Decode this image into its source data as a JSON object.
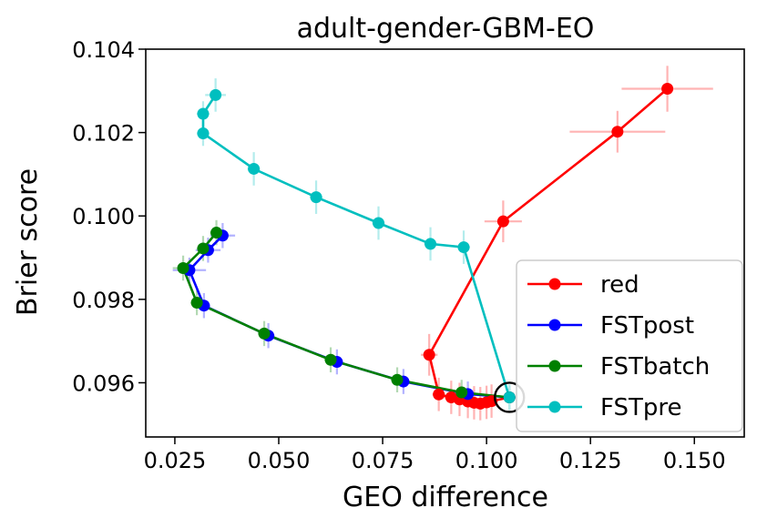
{
  "chart_data": {
    "type": "line",
    "title": "adult-gender-GBM-EO",
    "xlabel": "GEO difference",
    "ylabel": "Brier score",
    "xlim": [
      0.018,
      0.162
    ],
    "ylim": [
      0.0947,
      0.104
    ],
    "xticks": [
      {
        "value": 0.025,
        "label": "0.025"
      },
      {
        "value": 0.05,
        "label": "0.050"
      },
      {
        "value": 0.075,
        "label": "0.075"
      },
      {
        "value": 0.1,
        "label": "0.100"
      },
      {
        "value": 0.125,
        "label": "0.125"
      },
      {
        "value": 0.15,
        "label": "0.150"
      }
    ],
    "yticks": [
      {
        "value": 0.096,
        "label": "0.096"
      },
      {
        "value": 0.098,
        "label": "0.098"
      },
      {
        "value": 0.1,
        "label": "0.100"
      },
      {
        "value": 0.102,
        "label": "0.102"
      },
      {
        "value": 0.104,
        "label": "0.104"
      }
    ],
    "legend_position": "lower-right",
    "highlight_point": {
      "x": 0.1055,
      "y": 0.09565
    },
    "series": [
      {
        "name": "red",
        "color": "#ff0000",
        "errcolor": "#ffb3b3",
        "points": [
          {
            "x": 0.1435,
            "y": 0.10305,
            "xerr": 0.011,
            "yerr": 0.00055
          },
          {
            "x": 0.1315,
            "y": 0.10202,
            "xerr": 0.0115,
            "yerr": 0.0005
          },
          {
            "x": 0.104,
            "y": 0.09987,
            "xerr": 0.0045,
            "yerr": 0.0005
          },
          {
            "x": 0.0862,
            "y": 0.09667,
            "xerr": 0.002,
            "yerr": 0.0005
          },
          {
            "x": 0.0885,
            "y": 0.09572,
            "xerr": 0.0015,
            "yerr": 0.0004
          },
          {
            "x": 0.0915,
            "y": 0.09565,
            "xerr": 0.002,
            "yerr": 0.0004
          },
          {
            "x": 0.0935,
            "y": 0.0956,
            "xerr": 0.002,
            "yerr": 0.0004
          },
          {
            "x": 0.0955,
            "y": 0.09555,
            "xerr": 0.002,
            "yerr": 0.0004
          },
          {
            "x": 0.097,
            "y": 0.09552,
            "xerr": 0.002,
            "yerr": 0.0004
          },
          {
            "x": 0.0985,
            "y": 0.0955,
            "xerr": 0.002,
            "yerr": 0.0004
          },
          {
            "x": 0.1,
            "y": 0.09553,
            "xerr": 0.002,
            "yerr": 0.0004
          },
          {
            "x": 0.1012,
            "y": 0.09556,
            "xerr": 0.0015,
            "yerr": 0.0004
          },
          {
            "x": 0.1055,
            "y": 0.09565,
            "xerr": 0.0015,
            "yerr": 0.0003
          }
        ]
      },
      {
        "name": "FSTpost",
        "color": "#0000ff",
        "errcolor": "#b3b3ff",
        "points": [
          {
            "x": 0.0365,
            "y": 0.09953,
            "xerr": 0.003,
            "yerr": 0.0003
          },
          {
            "x": 0.033,
            "y": 0.09918,
            "xerr": 0.003,
            "yerr": 0.0003
          },
          {
            "x": 0.0285,
            "y": 0.0987,
            "xerr": 0.004,
            "yerr": 0.0003
          },
          {
            "x": 0.032,
            "y": 0.09785,
            "xerr": 0.0015,
            "yerr": 0.0003
          },
          {
            "x": 0.0475,
            "y": 0.09713,
            "xerr": 0.0015,
            "yerr": 0.0003
          },
          {
            "x": 0.064,
            "y": 0.0965,
            "xerr": 0.0015,
            "yerr": 0.0003
          },
          {
            "x": 0.08,
            "y": 0.09603,
            "xerr": 0.0015,
            "yerr": 0.0003
          },
          {
            "x": 0.0955,
            "y": 0.09573,
            "xerr": 0.0015,
            "yerr": 0.0003
          },
          {
            "x": 0.1055,
            "y": 0.09565,
            "xerr": 0.0015,
            "yerr": 0.0003
          }
        ]
      },
      {
        "name": "FSTbatch",
        "color": "#008000",
        "errcolor": "#b3d9b3",
        "points": [
          {
            "x": 0.035,
            "y": 0.0996,
            "xerr": 0.0015,
            "yerr": 0.0003
          },
          {
            "x": 0.0318,
            "y": 0.09922,
            "xerr": 0.0015,
            "yerr": 0.0003
          },
          {
            "x": 0.027,
            "y": 0.09875,
            "xerr": 0.0025,
            "yerr": 0.0003
          },
          {
            "x": 0.0303,
            "y": 0.09792,
            "xerr": 0.0015,
            "yerr": 0.0003
          },
          {
            "x": 0.0465,
            "y": 0.09718,
            "xerr": 0.0015,
            "yerr": 0.0003
          },
          {
            "x": 0.0625,
            "y": 0.09655,
            "xerr": 0.0015,
            "yerr": 0.0003
          },
          {
            "x": 0.0785,
            "y": 0.09607,
            "xerr": 0.0015,
            "yerr": 0.0003
          },
          {
            "x": 0.094,
            "y": 0.09577,
            "xerr": 0.0015,
            "yerr": 0.0003
          },
          {
            "x": 0.1055,
            "y": 0.09565,
            "xerr": 0.0015,
            "yerr": 0.0003
          }
        ]
      },
      {
        "name": "FSTpre",
        "color": "#00bfbf",
        "errcolor": "#b3ecec",
        "points": [
          {
            "x": 0.0348,
            "y": 0.1029,
            "xerr": 0.0025,
            "yerr": 0.0004
          },
          {
            "x": 0.0318,
            "y": 0.10245,
            "xerr": 0.0015,
            "yerr": 0.0003
          },
          {
            "x": 0.0318,
            "y": 0.10198,
            "xerr": 0.0015,
            "yerr": 0.0003
          },
          {
            "x": 0.044,
            "y": 0.10113,
            "xerr": 0.0015,
            "yerr": 0.0004
          },
          {
            "x": 0.059,
            "y": 0.10045,
            "xerr": 0.0015,
            "yerr": 0.0004
          },
          {
            "x": 0.074,
            "y": 0.09983,
            "xerr": 0.0015,
            "yerr": 0.0004
          },
          {
            "x": 0.0865,
            "y": 0.09933,
            "xerr": 0.0015,
            "yerr": 0.0004
          },
          {
            "x": 0.0945,
            "y": 0.09925,
            "xerr": 0.0015,
            "yerr": 0.0004
          },
          {
            "x": 0.1055,
            "y": 0.09565,
            "xerr": 0.0015,
            "yerr": 0.0003
          }
        ]
      }
    ]
  }
}
